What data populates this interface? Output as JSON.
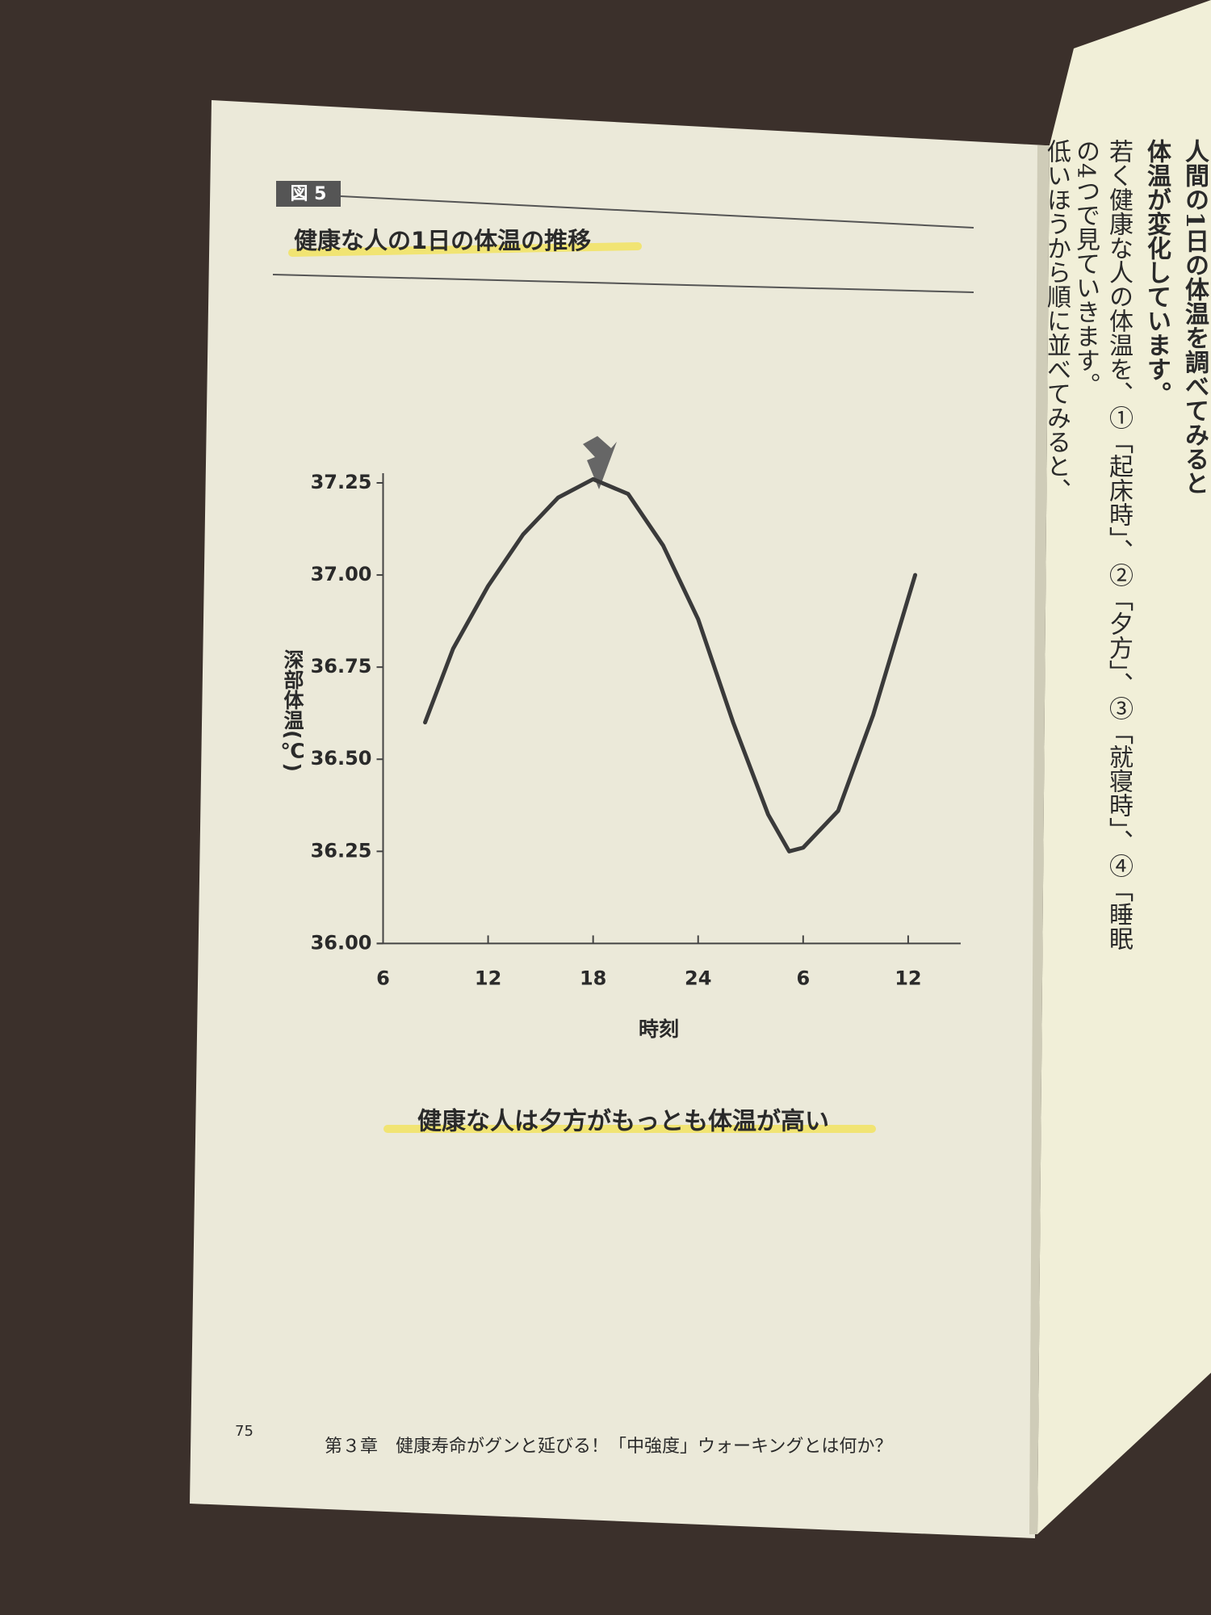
{
  "figure_label": "図 5",
  "caption": "健康な人は夕方がもっとも体温が高い",
  "page_number": "75",
  "footer": "第３章　健康寿命がグンと延びる！「中強度」ウォーキングとは何か？",
  "right_page": {
    "lines": [
      "人間の1日の体温を調べてみると",
      "体温が変化しています。",
      "若く健康な人の体温を、①「起床時」、②「夕方」、③「就寝時」、④「睡眠",
      "の4つで見ていきます。",
      "低いほうから順に並べてみると、"
    ]
  },
  "chart_data": {
    "type": "line",
    "title": "健康な人の1日の体温の推移",
    "x_label": "時刻",
    "y_label": "深部体温(℃)",
    "x": [
      8.4,
      10,
      12,
      14,
      16,
      18,
      20,
      22,
      24,
      26,
      28,
      29.2,
      30,
      32,
      34,
      36.4
    ],
    "values": [
      36.6,
      36.8,
      36.97,
      37.11,
      37.21,
      37.26,
      37.22,
      37.08,
      36.88,
      36.6,
      36.35,
      36.25,
      36.26,
      36.36,
      36.62,
      37.0
    ],
    "color": "#3a3a3a",
    "xlim": [
      6,
      39
    ],
    "xticks": [
      6,
      12,
      18,
      24,
      {
        "value": 30,
        "label": "6"
      },
      {
        "value": 36,
        "label": "12"
      }
    ],
    "ylim": [
      36,
      37.25
    ],
    "yticks": [
      {
        "value": 36,
        "label": "36.00"
      },
      36.25,
      {
        "value": 36.5,
        "label": "36.50"
      },
      36.75,
      {
        "value": 37,
        "label": "37.00"
      },
      37.25
    ],
    "grid": false
  }
}
